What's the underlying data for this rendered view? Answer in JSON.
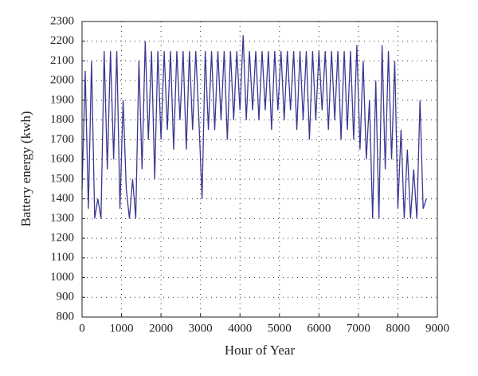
{
  "chart_data": {
    "type": "line",
    "xlabel": "Hour of Year",
    "ylabel": "Battery energy (kwh)",
    "x": [
      0,
      80,
      160,
      240,
      320,
      400,
      480,
      560,
      640,
      720,
      800,
      880,
      960,
      1040,
      1120,
      1200,
      1280,
      1360,
      1440,
      1520,
      1600,
      1680,
      1760,
      1840,
      1920,
      2000,
      2080,
      2160,
      2240,
      2320,
      2400,
      2480,
      2560,
      2640,
      2720,
      2800,
      2880,
      2960,
      3040,
      3120,
      3200,
      3280,
      3360,
      3440,
      3520,
      3600,
      3680,
      3760,
      3840,
      3920,
      4000,
      4080,
      4160,
      4240,
      4320,
      4400,
      4480,
      4560,
      4640,
      4720,
      4800,
      4880,
      4960,
      5040,
      5120,
      5200,
      5280,
      5360,
      5440,
      5520,
      5600,
      5680,
      5760,
      5840,
      5920,
      6000,
      6080,
      6160,
      6240,
      6320,
      6400,
      6480,
      6560,
      6640,
      6720,
      6800,
      6880,
      6960,
      7040,
      7120,
      7200,
      7280,
      7360,
      7440,
      7520,
      7600,
      7680,
      7760,
      7840,
      7920,
      8000,
      8080,
      8160,
      8240,
      8320,
      8400,
      8480,
      8560,
      8640,
      8720
    ],
    "series": [
      {
        "name": "Battery energy",
        "color": "#3b3791",
        "values": [
          1450,
          2050,
          1350,
          2100,
          1300,
          1400,
          1300,
          2150,
          1550,
          2150,
          1600,
          2150,
          1350,
          1900,
          1450,
          1300,
          1500,
          1300,
          2100,
          1550,
          2200,
          1700,
          2150,
          1500,
          2150,
          1700,
          2150,
          1750,
          2150,
          1650,
          2150,
          1800,
          2150,
          1650,
          2150,
          1750,
          2150,
          1800,
          1400,
          2150,
          1750,
          2150,
          1750,
          2150,
          1800,
          2150,
          1700,
          2150,
          1800,
          2150,
          1850,
          2230,
          1800,
          2150,
          1850,
          2150,
          1800,
          2150,
          1850,
          2150,
          1750,
          2150,
          1850,
          2150,
          1800,
          2150,
          1850,
          2150,
          1750,
          2150,
          1800,
          2150,
          1700,
          2150,
          1800,
          2150,
          1850,
          2150,
          1750,
          2150,
          1800,
          2150,
          1700,
          2150,
          1750,
          2150,
          1700,
          2180,
          1650,
          2100,
          1600,
          1900,
          1300,
          2000,
          1300,
          2180,
          1550,
          2150,
          1600,
          2100,
          1350,
          1750,
          1300,
          1650,
          1300,
          1550,
          1300,
          1900,
          1350,
          1400
        ]
      }
    ],
    "xlim": [
      0,
      9000
    ],
    "xticks": [
      0,
      1000,
      2000,
      3000,
      4000,
      5000,
      6000,
      7000,
      8000,
      9000
    ],
    "ylim": [
      800,
      2300
    ],
    "yticks": [
      800,
      900,
      1000,
      1100,
      1200,
      1300,
      1400,
      1500,
      1600,
      1700,
      1800,
      1900,
      2000,
      2100,
      2200,
      2300
    ],
    "grid": true
  }
}
